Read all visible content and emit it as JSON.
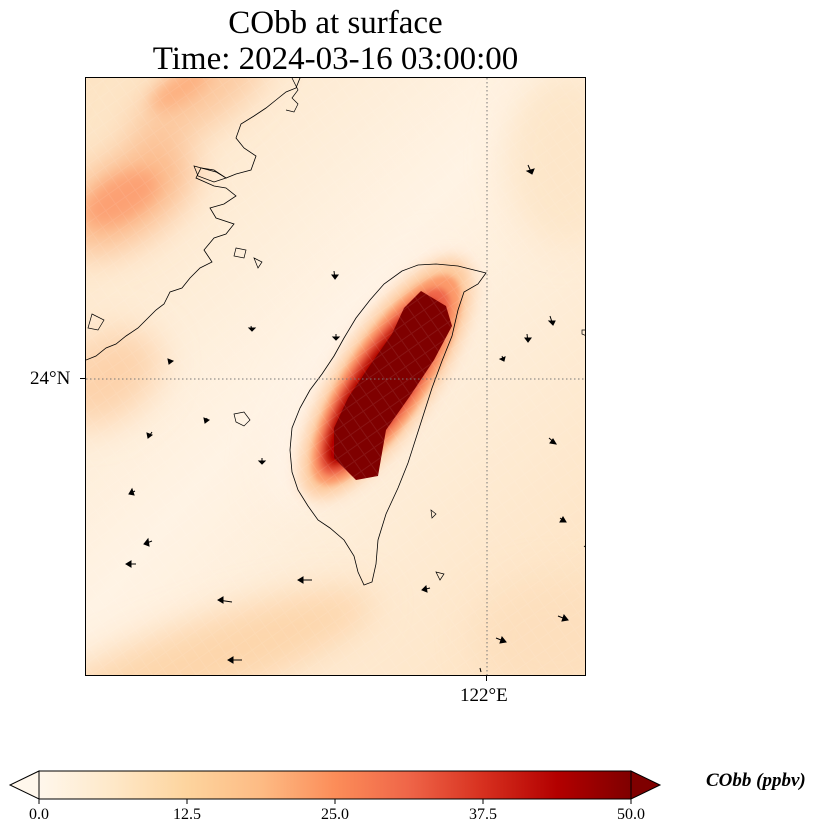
{
  "map": {
    "title_line1": "CObb at surface",
    "title_line2": "Time: 2024-03-16 03:00:00",
    "lat_tick_label": "24°N",
    "lon_tick_label": "122°E",
    "gridline_style": "dotted",
    "gridline_color": "#777777",
    "background_low_color": "#fff5e8",
    "coast_color": "#000000",
    "wind_vector_color": "#000000"
  },
  "colorbar": {
    "label": "CObb (ppbv)",
    "colormap": "OrRd",
    "min": 0.0,
    "max": 50.0,
    "extend": "both",
    "tick_labels": [
      "0.0",
      "12.5",
      "25.0",
      "37.5",
      "50.0"
    ],
    "colors": [
      "#fff7ec",
      "#fee8c8",
      "#fdd49e",
      "#fdbb84",
      "#fc8d59",
      "#ef6548",
      "#d7301f",
      "#b30000",
      "#7f0000"
    ]
  }
}
